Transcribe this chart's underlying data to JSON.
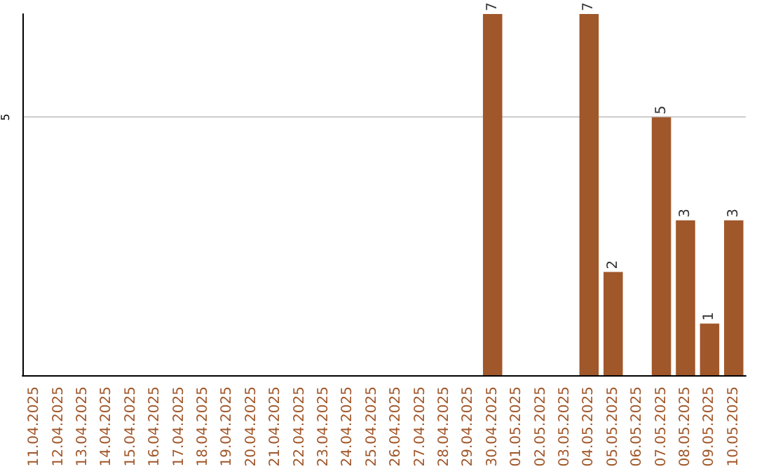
{
  "chart_data": {
    "type": "bar",
    "categories": [
      "11.04.2025",
      "12.04.2025",
      "13.04.2025",
      "14.04.2025",
      "15.04.2025",
      "16.04.2025",
      "17.04.2025",
      "18.04.2025",
      "19.04.2025",
      "20.04.2025",
      "21.04.2025",
      "22.04.2025",
      "23.04.2025",
      "24.04.2025",
      "25.04.2025",
      "26.04.2025",
      "27.04.2025",
      "28.04.2025",
      "29.04.2025",
      "30.04.2025",
      "01.05.2025",
      "02.05.2025",
      "03.05.2025",
      "04.05.2025",
      "05.05.2025",
      "06.05.2025",
      "07.05.2025",
      "08.05.2025",
      "09.05.2025",
      "10.05.2025"
    ],
    "values": [
      null,
      null,
      null,
      null,
      null,
      null,
      null,
      null,
      null,
      null,
      null,
      null,
      null,
      null,
      null,
      null,
      null,
      null,
      null,
      7,
      null,
      null,
      null,
      7,
      2,
      null,
      5,
      3,
      1,
      3
    ],
    "data_labels": true,
    "color": "#a0572a",
    "ylim": [
      0,
      7
    ],
    "yticks": [
      5
    ],
    "grid": "y"
  }
}
